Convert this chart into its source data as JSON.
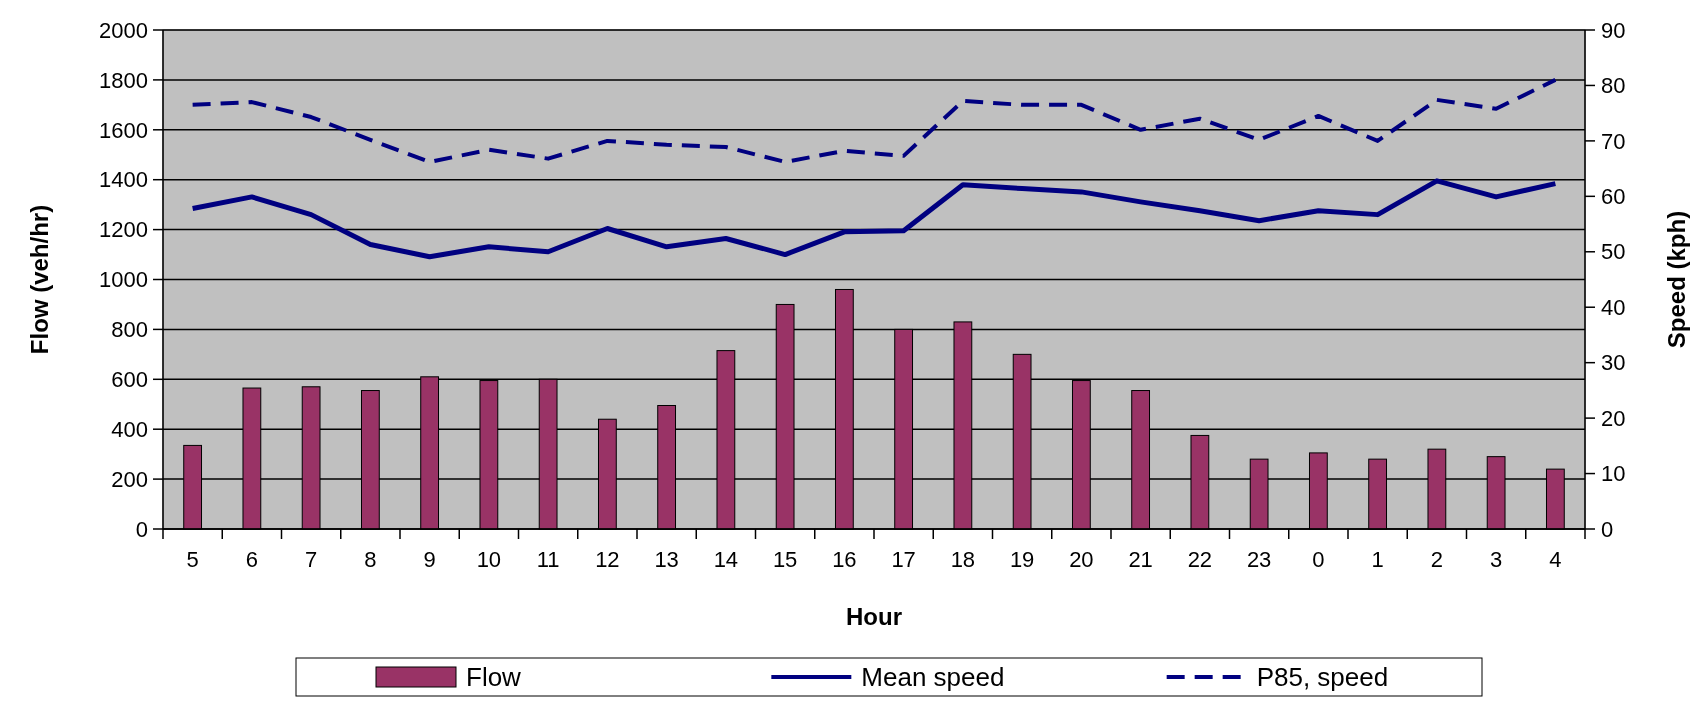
{
  "chart_data": {
    "type": "bar",
    "xlabel": "Hour",
    "ylabel": "Flow (veh/hr)",
    "y2label": "Speed (kph)",
    "categories": [
      "5",
      "6",
      "7",
      "8",
      "9",
      "10",
      "11",
      "12",
      "13",
      "14",
      "15",
      "16",
      "17",
      "18",
      "19",
      "20",
      "21",
      "22",
      "23",
      "0",
      "1",
      "2",
      "3",
      "4"
    ],
    "series": [
      {
        "name": "Flow",
        "color": "#993366",
        "values": [
          335,
          565,
          570,
          555,
          610,
          595,
          600,
          440,
          495,
          715,
          900,
          960,
          800,
          830,
          700,
          595,
          555,
          375,
          280,
          305,
          280,
          320,
          290,
          240
        ]
      },
      {
        "name": "Mean speed",
        "type": "line",
        "axis": "y2",
        "color": "#000080",
        "line_style": "solid",
        "values": [
          57.8,
          59.9,
          56.7,
          51.3,
          49.1,
          50.9,
          50,
          54.2,
          50.9,
          52.4,
          49.5,
          53.6,
          53.8,
          62.1,
          61.4,
          60.8,
          59,
          57.4,
          55.6,
          57.4,
          56.7,
          62.8,
          59.9,
          62.3
        ]
      },
      {
        "name": "P85, speed",
        "type": "line",
        "axis": "y2",
        "color": "#000080",
        "line_style": "dashed",
        "values": [
          76.5,
          77,
          74.3,
          70.2,
          66.2,
          68.4,
          66.8,
          70,
          69.3,
          68.9,
          66.2,
          68.2,
          67.3,
          77.2,
          76.5,
          76.5,
          72,
          74,
          70.2,
          74.5,
          70,
          77.4,
          75.8,
          81
        ]
      }
    ],
    "ylim": [
      0,
      2000
    ],
    "yticks": [
      0,
      200,
      400,
      600,
      800,
      1000,
      1200,
      1400,
      1600,
      1800,
      2000
    ],
    "y2lim": [
      0,
      90
    ],
    "y2ticks": [
      0,
      10,
      20,
      30,
      40,
      50,
      60,
      70,
      80,
      90
    ],
    "grid": "y",
    "legend": "bottom"
  }
}
